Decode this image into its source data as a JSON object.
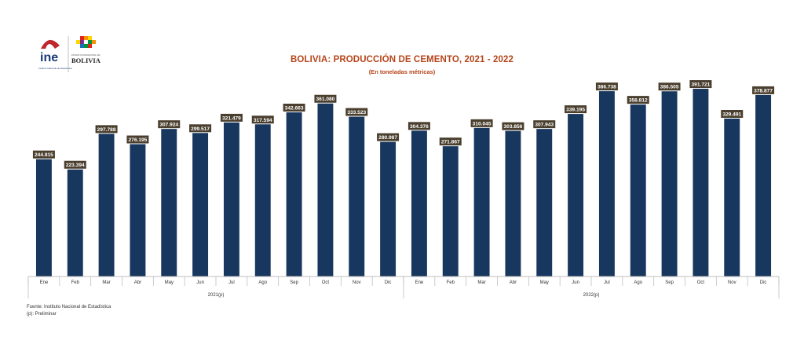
{
  "logos": {
    "ine_text": "ine",
    "ine_caption": "Instituto Nacional de Estadística",
    "bolivia_text": "BOLIVIA",
    "bolivia_caption": "ESTADO PLURINACIONAL DE"
  },
  "colors": {
    "bar": "#17375e",
    "label_bg": "#4a3f2e",
    "title": "#b5451b",
    "axis": "#bfbfbf"
  },
  "chart_data": {
    "type": "bar",
    "title": "BOLIVIA: PRODUCCIÓN DE CEMENTO, 2021 - 2022",
    "subtitle": "(En toneladas métricas)",
    "categories": [
      "Ene",
      "Feb",
      "Mar",
      "Abr",
      "May",
      "Jun",
      "Jul",
      "Ago",
      "Sep",
      "Oct",
      "Nov",
      "Dic",
      "Ene",
      "Feb",
      "Mar",
      "Abr",
      "May",
      "Jun",
      "Jul",
      "Ago",
      "Sep",
      "Oct",
      "Nov",
      "Dic"
    ],
    "values": [
      244815,
      223394,
      297788,
      276195,
      307924,
      299517,
      321479,
      317594,
      342663,
      361080,
      333523,
      280987,
      304376,
      271867,
      310045,
      303856,
      307943,
      339195,
      386738,
      358812,
      386505,
      391721,
      329491,
      378877
    ],
    "data_labels": [
      "244.815",
      "223.394",
      "297.788",
      "276.195",
      "307.924",
      "299.517",
      "321.479",
      "317.594",
      "342.663",
      "361.080",
      "333.523",
      "280.987",
      "304.376",
      "271.867",
      "310.045",
      "303.856",
      "307.943",
      "339.195",
      "386.738",
      "358.812",
      "386.505",
      "391.721",
      "329.491",
      "378.877"
    ],
    "groups": [
      {
        "label": "2021(p)",
        "count": 12
      },
      {
        "label": "2022(p)",
        "count": 12
      }
    ],
    "ylim": [
      0,
      400000
    ],
    "grid": false,
    "legend": "none"
  },
  "footer": {
    "source": "Fuente: Instituto Nacional de Estadística",
    "note": "(p): Preliminar"
  }
}
